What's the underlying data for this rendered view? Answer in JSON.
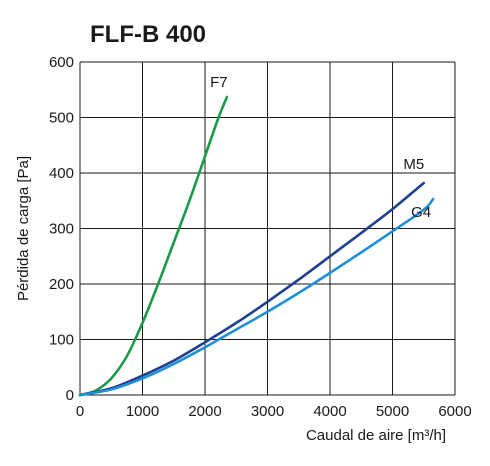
{
  "chart_data": {
    "type": "line",
    "title": "FLF-B 400",
    "xlabel": "Caudal de aire [m³/h]",
    "ylabel": "Pérdida de carga [Pa]",
    "xlim": [
      0,
      6000
    ],
    "ylim": [
      0,
      600
    ],
    "x_ticks": [
      "0",
      "1000",
      "2000",
      "3000",
      "4000",
      "5000",
      "6000"
    ],
    "y_ticks": [
      "0",
      "100",
      "200",
      "300",
      "400",
      "500",
      "600"
    ],
    "grid": true,
    "series": [
      {
        "name": "F7",
        "color": "#1a9a4a",
        "points": [
          [
            0,
            0
          ],
          [
            250,
            8
          ],
          [
            500,
            30
          ],
          [
            750,
            70
          ],
          [
            1000,
            130
          ],
          [
            1250,
            200
          ],
          [
            1500,
            275
          ],
          [
            1750,
            350
          ],
          [
            2000,
            430
          ],
          [
            2200,
            495
          ],
          [
            2350,
            537
          ]
        ]
      },
      {
        "name": "M5",
        "color": "#1f3f8f",
        "points": [
          [
            0,
            0
          ],
          [
            500,
            12
          ],
          [
            1000,
            35
          ],
          [
            1500,
            62
          ],
          [
            2000,
            95
          ],
          [
            2500,
            130
          ],
          [
            3000,
            168
          ],
          [
            3500,
            208
          ],
          [
            4000,
            250
          ],
          [
            4500,
            292
          ],
          [
            5000,
            335
          ],
          [
            5500,
            382
          ]
        ]
      },
      {
        "name": "G4",
        "color": "#1f8fd6",
        "points": [
          [
            0,
            0
          ],
          [
            500,
            10
          ],
          [
            1000,
            30
          ],
          [
            1500,
            56
          ],
          [
            2000,
            86
          ],
          [
            2500,
            118
          ],
          [
            3000,
            150
          ],
          [
            3500,
            184
          ],
          [
            4000,
            220
          ],
          [
            4500,
            257
          ],
          [
            5000,
            295
          ],
          [
            5500,
            334
          ],
          [
            5650,
            353
          ]
        ]
      }
    ]
  }
}
